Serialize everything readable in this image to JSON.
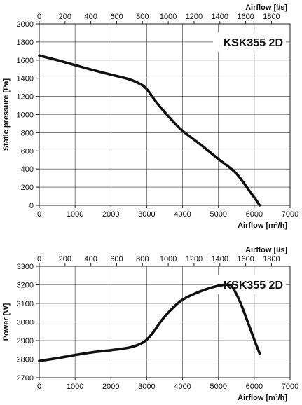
{
  "chart_data": [
    {
      "type": "line",
      "title": "KSK355 2D",
      "xlabel": "Airflow [m³/h]",
      "x2label": "Airflow [l/s]",
      "ylabel": "Static pressure [Pa]",
      "xlim": [
        0,
        7000
      ],
      "x2lim": [
        0,
        1944.44
      ],
      "ylim": [
        0,
        2000
      ],
      "xticks": [
        "0",
        "1000",
        "2000",
        "3000",
        "4000",
        "5000",
        "6000",
        "7000"
      ],
      "x2ticks": [
        "0",
        "200",
        "400",
        "600",
        "800",
        "1000",
        "1200",
        "1400",
        "1600",
        "1800"
      ],
      "yticks": [
        "0",
        "200",
        "400",
        "600",
        "800",
        "1000",
        "1200",
        "1400",
        "1600",
        "1800",
        "2000"
      ],
      "grid": true,
      "series": [
        {
          "x": [
            0,
            500,
            1000,
            1500,
            2000,
            2500,
            2800,
            3000,
            3300,
            3700,
            4000,
            4500,
            5000,
            5300,
            5500,
            5700,
            5900,
            6050,
            6150
          ],
          "values": [
            1650,
            1600,
            1545,
            1490,
            1440,
            1390,
            1340,
            1280,
            1120,
            940,
            820,
            670,
            510,
            420,
            350,
            250,
            140,
            60,
            0
          ]
        }
      ]
    },
    {
      "type": "line",
      "title": "KSK355 2D",
      "xlabel": "Airflow [m³/h]",
      "x2label": "Airflow [l/s]",
      "ylabel": "Power [W]",
      "xlim": [
        0,
        7000
      ],
      "x2lim": [
        0,
        1944.44
      ],
      "ylim": [
        2700,
        3300
      ],
      "xticks": [
        "0",
        "1000",
        "2000",
        "3000",
        "4000",
        "5000",
        "6000",
        "7000"
      ],
      "x2ticks": [
        "0",
        "200",
        "400",
        "600",
        "800",
        "1000",
        "1200",
        "1400",
        "1600",
        "1800"
      ],
      "yticks": [
        "2700",
        "2800",
        "2900",
        "3000",
        "3100",
        "3200",
        "3300"
      ],
      "grid": true,
      "series": [
        {
          "x": [
            0,
            500,
            1000,
            1500,
            2000,
            2500,
            2800,
            3000,
            3200,
            3400,
            3700,
            4000,
            4500,
            5000,
            5300,
            5400,
            5600,
            5800,
            6000,
            6150
          ],
          "values": [
            2790,
            2805,
            2822,
            2837,
            2848,
            2862,
            2880,
            2905,
            2950,
            3005,
            3070,
            3120,
            3165,
            3195,
            3200,
            3185,
            3110,
            3010,
            2905,
            2830
          ]
        }
      ]
    }
  ]
}
